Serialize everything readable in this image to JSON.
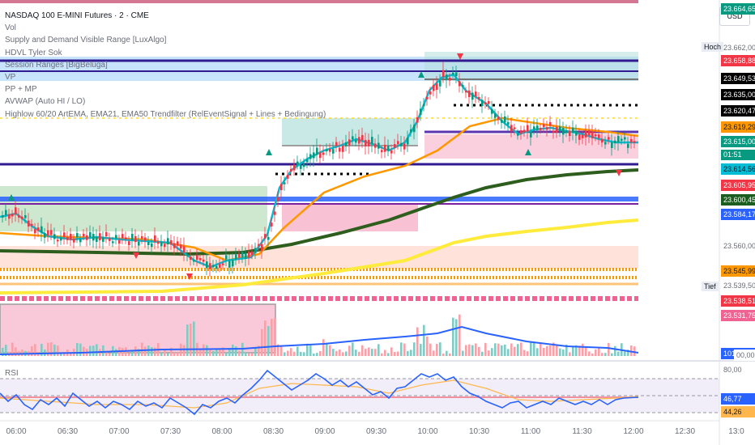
{
  "header": {
    "title": "NASDAQ 100 E-MINI Futures · 2 · CME",
    "currency_button": "USD"
  },
  "legend": [
    "Vol",
    "Supply and Demand Visible Range [LuxAlgo]",
    "HDVL Tyler Sok",
    "Session Ranges [BigBeluga]",
    "VP",
    "PP + MP",
    "AVWAP (Auto HI / LO)",
    "Highlow 60/20 ArtEMA, EMA21, EMA50 Trendfilter (RelEventSignal + Lines + Bedingung)"
  ],
  "rsi_pane": {
    "label": "RSI",
    "upper": "80,00",
    "middle": "46,77",
    "lower": "44,26"
  },
  "price_scale": {
    "side_labels": {
      "high": "Hoch",
      "low": "Tief"
    },
    "plain_labels": [
      "23.662,00",
      "23.560,00",
      "23.539,50"
    ],
    "countdown": "01:51",
    "tags": [
      {
        "text": "23.664,65",
        "bg": "#089981",
        "fg": "#ffffff"
      },
      {
        "text": "23.658,88",
        "bg": "#f23645",
        "fg": "#ffffff"
      },
      {
        "text": "23.649,53",
        "bg": "#000000",
        "fg": "#ffffff"
      },
      {
        "text": "23.635,00",
        "bg": "#000000",
        "fg": "#ffffff"
      },
      {
        "text": "23.620,47",
        "bg": "#000000",
        "fg": "#ffffff"
      },
      {
        "text": "23.619,29",
        "bg": "#ff9800",
        "fg": "#131722"
      },
      {
        "text": "23.615,00",
        "bg": "#089981",
        "fg": "#ffffff"
      },
      {
        "text": "23.614,56",
        "bg": "#00bcd4",
        "fg": "#131722"
      },
      {
        "text": "23.605,95",
        "bg": "#f23645",
        "fg": "#ffffff"
      },
      {
        "text": "23.600,45",
        "bg": "#1b5e20",
        "fg": "#ffffff"
      },
      {
        "text": "23.584,17",
        "bg": "#2962ff",
        "fg": "#ffffff"
      },
      {
        "text": "23.545,99",
        "bg": "#ff9800",
        "fg": "#131722"
      },
      {
        "text": "23.538,51",
        "bg": "#f23645",
        "fg": "#ffffff"
      },
      {
        "text": "23.531,75",
        "bg": "#f06292",
        "fg": "#ffffff"
      },
      {
        "text": "101",
        "bg": "#2962ff",
        "fg": "#ffffff"
      },
      {
        "text": "00,00",
        "bg": "#ffffff",
        "fg": "#6a6d78"
      }
    ]
  },
  "time_axis": [
    "06:00",
    "06:30",
    "07:00",
    "07:30",
    "08:00",
    "08:30",
    "09:00",
    "09:30",
    "10:00",
    "10:30",
    "11:00",
    "11:30",
    "12:00",
    "12:30",
    "13:0"
  ],
  "colors": {
    "up_candle": "#089981",
    "down_candle": "#f23645",
    "ema_fast": "#00bcd4",
    "ema_mid": "#ff9800",
    "ema_slow": "#2e5e1e",
    "avwap": "#ffeb3b",
    "rsi_line": "#2962ff",
    "rsi_ma": "#ffb74d"
  }
}
